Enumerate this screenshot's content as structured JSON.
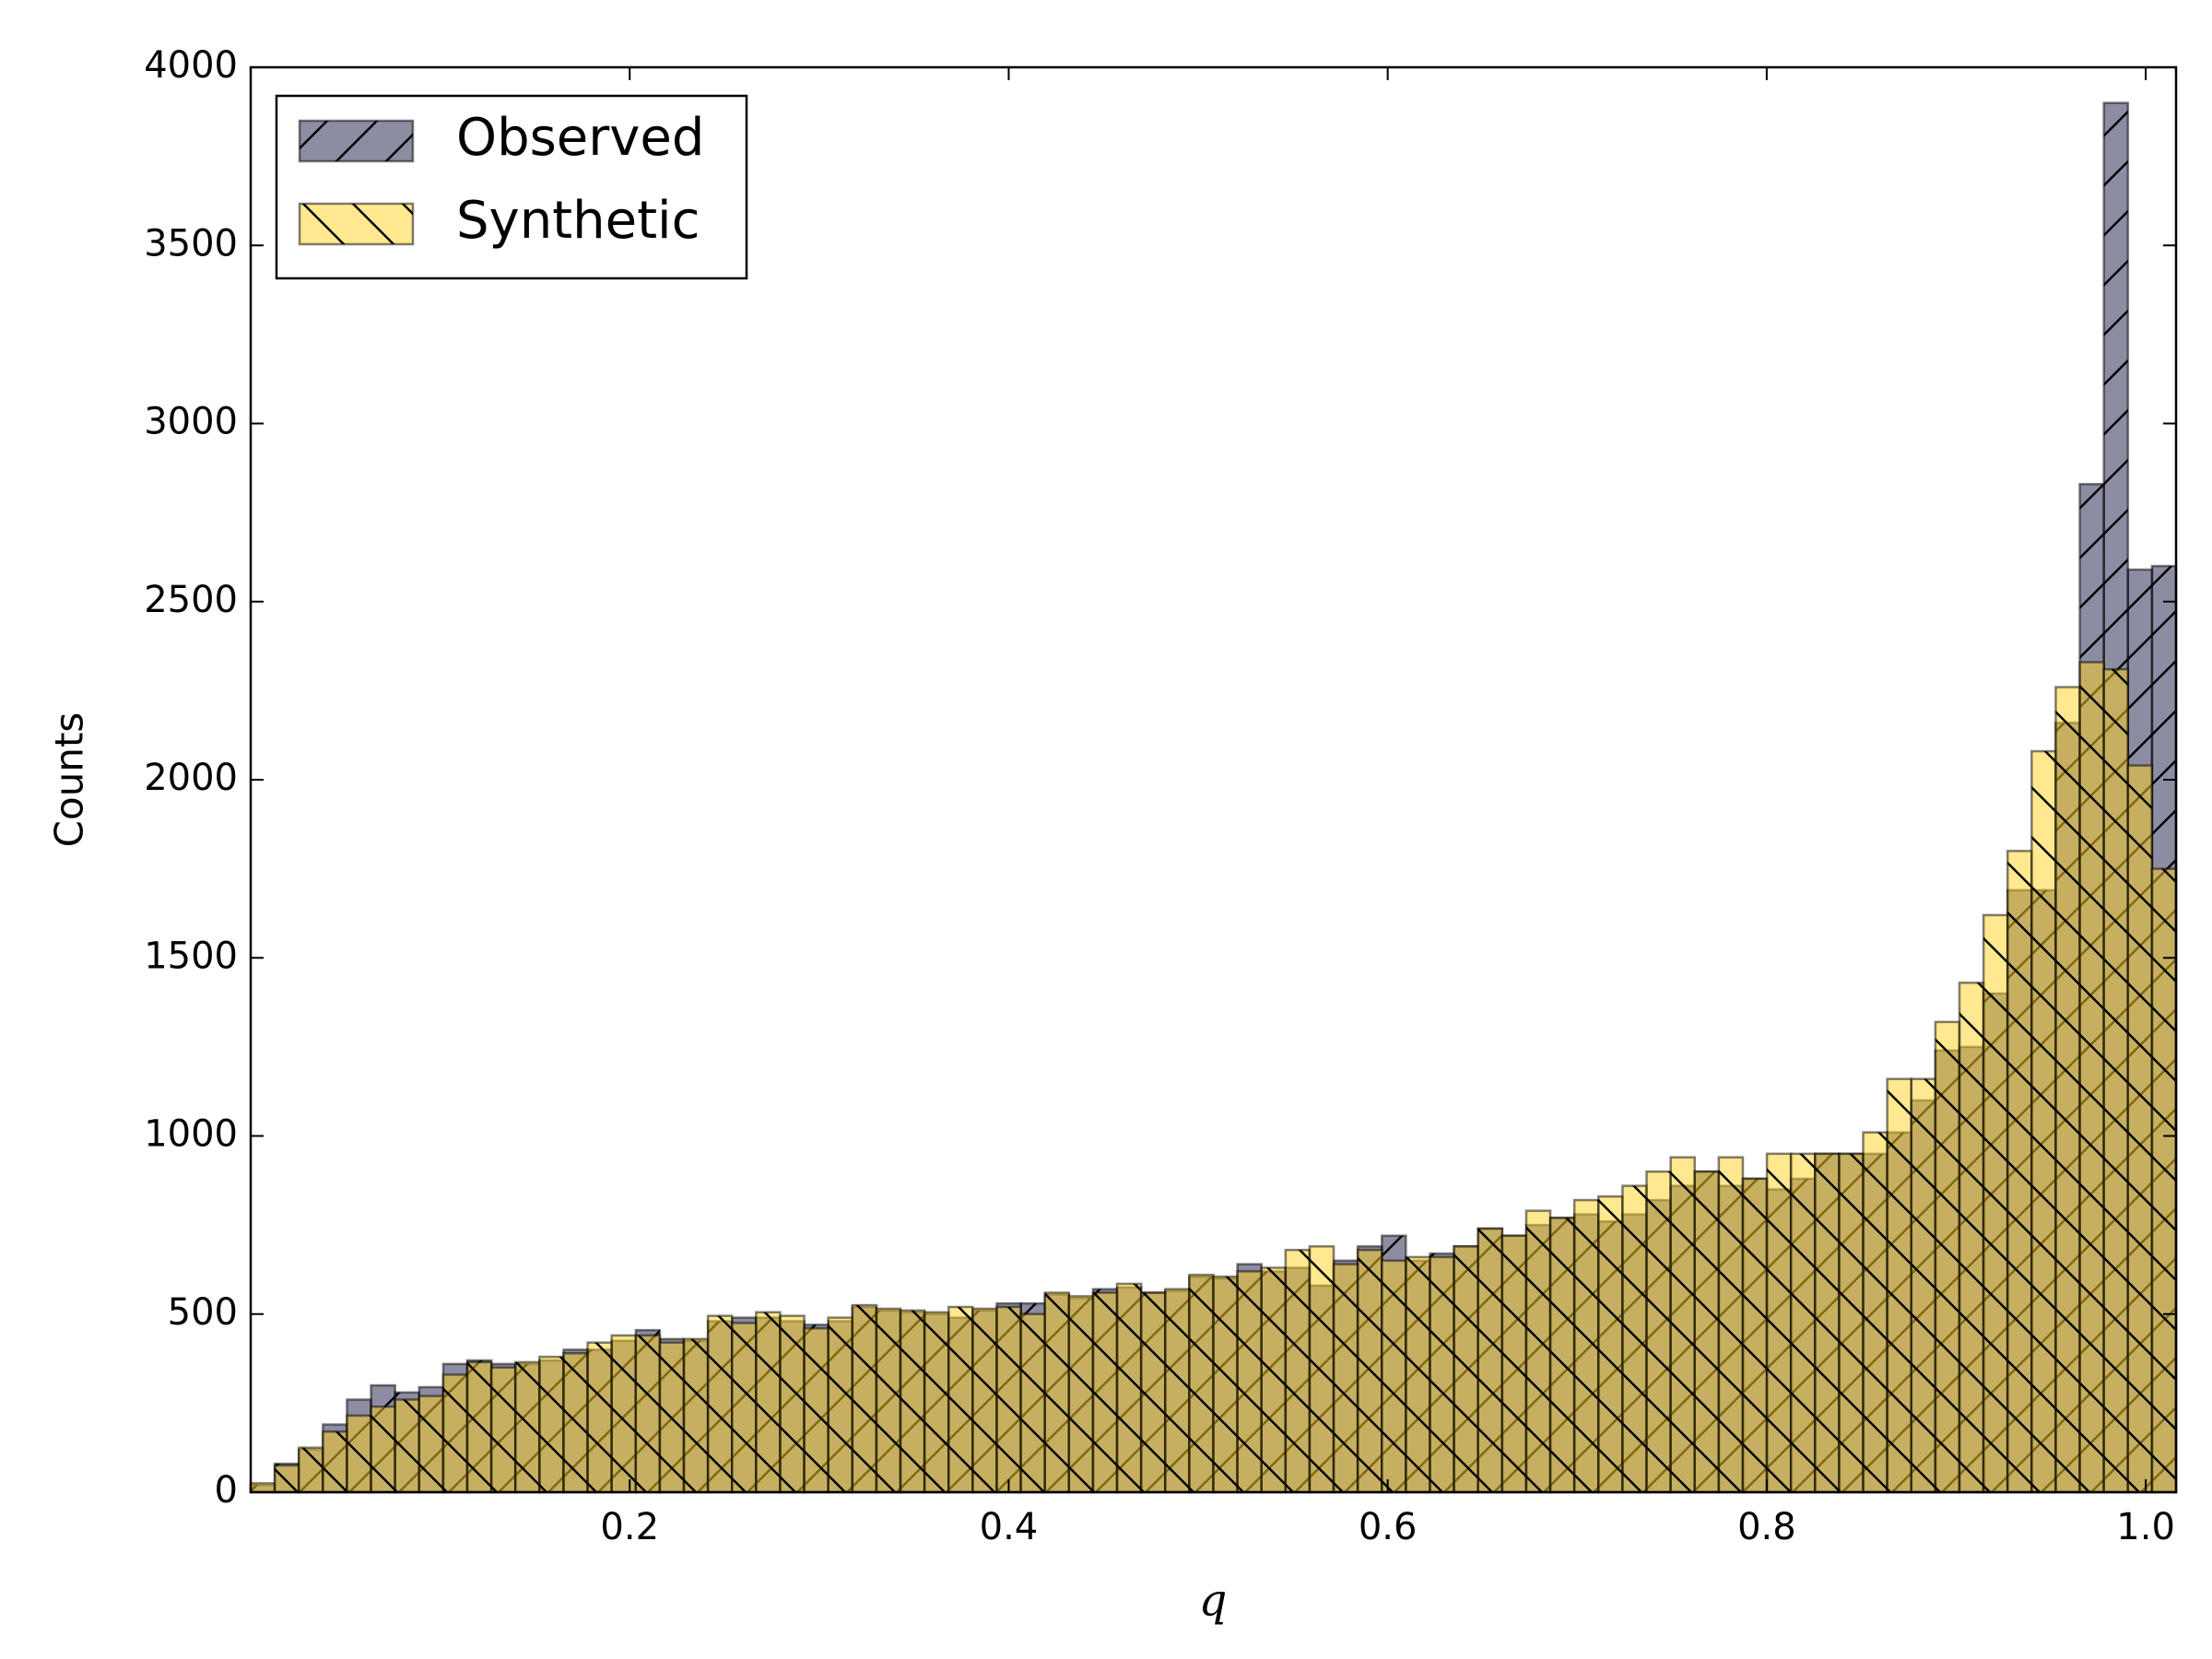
{
  "chart_data": {
    "type": "histogram",
    "x_label": "q",
    "y_label": "Counts",
    "bins": [
      0,
      0.0127,
      0.0254,
      0.0381,
      0.0508,
      0.0635,
      0.0762,
      0.0889,
      0.1016,
      0.1143,
      0.127,
      0.1397,
      0.1524,
      0.1651,
      0.1778,
      0.1905,
      0.2032,
      0.2159,
      0.2286,
      0.2413,
      0.254,
      0.2667,
      0.2794,
      0.2921,
      0.3048,
      0.3175,
      0.3302,
      0.3429,
      0.3556,
      0.3683,
      0.381,
      0.3937,
      0.4064,
      0.4191,
      0.4318,
      0.4445,
      0.4572,
      0.4699,
      0.4826,
      0.4953,
      0.508,
      0.5207,
      0.5334,
      0.5461,
      0.5588,
      0.5715,
      0.5842,
      0.5969,
      0.6096,
      0.6223,
      0.635,
      0.6477,
      0.6604,
      0.6731,
      0.6858,
      0.6985,
      0.7112,
      0.7239,
      0.7366,
      0.7493,
      0.762,
      0.7747,
      0.7874,
      0.8001,
      0.8128,
      0.8255,
      0.8382,
      0.8509,
      0.8636,
      0.8763,
      0.889,
      0.9017,
      0.9144,
      0.9271,
      0.9398,
      0.9525,
      0.9652,
      0.9779,
      0.9906,
      1.0033,
      1.016
    ],
    "series": [
      {
        "name": "Observed",
        "color": "#191947",
        "hatch": "/",
        "values": [
          20,
          80,
          120,
          190,
          260,
          300,
          280,
          295,
          360,
          370,
          360,
          360,
          370,
          400,
          400,
          425,
          455,
          430,
          425,
          480,
          490,
          490,
          480,
          470,
          480,
          520,
          510,
          505,
          500,
          490,
          510,
          530,
          530,
          555,
          545,
          570,
          575,
          560,
          565,
          605,
          600,
          640,
          620,
          630,
          580,
          650,
          690,
          720,
          650,
          670,
          690,
          740,
          720,
          750,
          770,
          780,
          760,
          780,
          820,
          860,
          900,
          860,
          880,
          850,
          880,
          950,
          950,
          950,
          1010,
          1100,
          1240,
          1250,
          1400,
          1690,
          1690,
          2160,
          2830,
          3900,
          2590,
          2600
        ]
      },
      {
        "name": "Synthetic",
        "color": "#ffd21f",
        "hatch": "\\",
        "values": [
          25,
          75,
          125,
          170,
          215,
          240,
          260,
          270,
          330,
          365,
          350,
          365,
          380,
          390,
          420,
          440,
          440,
          420,
          430,
          495,
          475,
          505,
          495,
          460,
          490,
          525,
          515,
          510,
          505,
          520,
          515,
          520,
          500,
          560,
          550,
          560,
          585,
          560,
          570,
          610,
          605,
          620,
          630,
          680,
          690,
          640,
          680,
          650,
          660,
          660,
          690,
          740,
          720,
          790,
          770,
          820,
          830,
          860,
          900,
          940,
          900,
          940,
          880,
          950,
          950,
          950,
          950,
          1010,
          1160,
          1160,
          1320,
          1430,
          1620,
          1800,
          2080,
          2260,
          2330,
          2310,
          2040,
          1750
        ]
      }
    ],
    "xlim": [
      0,
      1.016
    ],
    "ylim": [
      0,
      4000
    ],
    "xticks": [
      0.2,
      0.4,
      0.6,
      0.8,
      {
        "value": 1,
        "label": "1.0"
      }
    ],
    "yticks": [
      0,
      500,
      1000,
      1500,
      2000,
      2500,
      3000,
      3500,
      4000
    ],
    "legend": "upper left"
  }
}
